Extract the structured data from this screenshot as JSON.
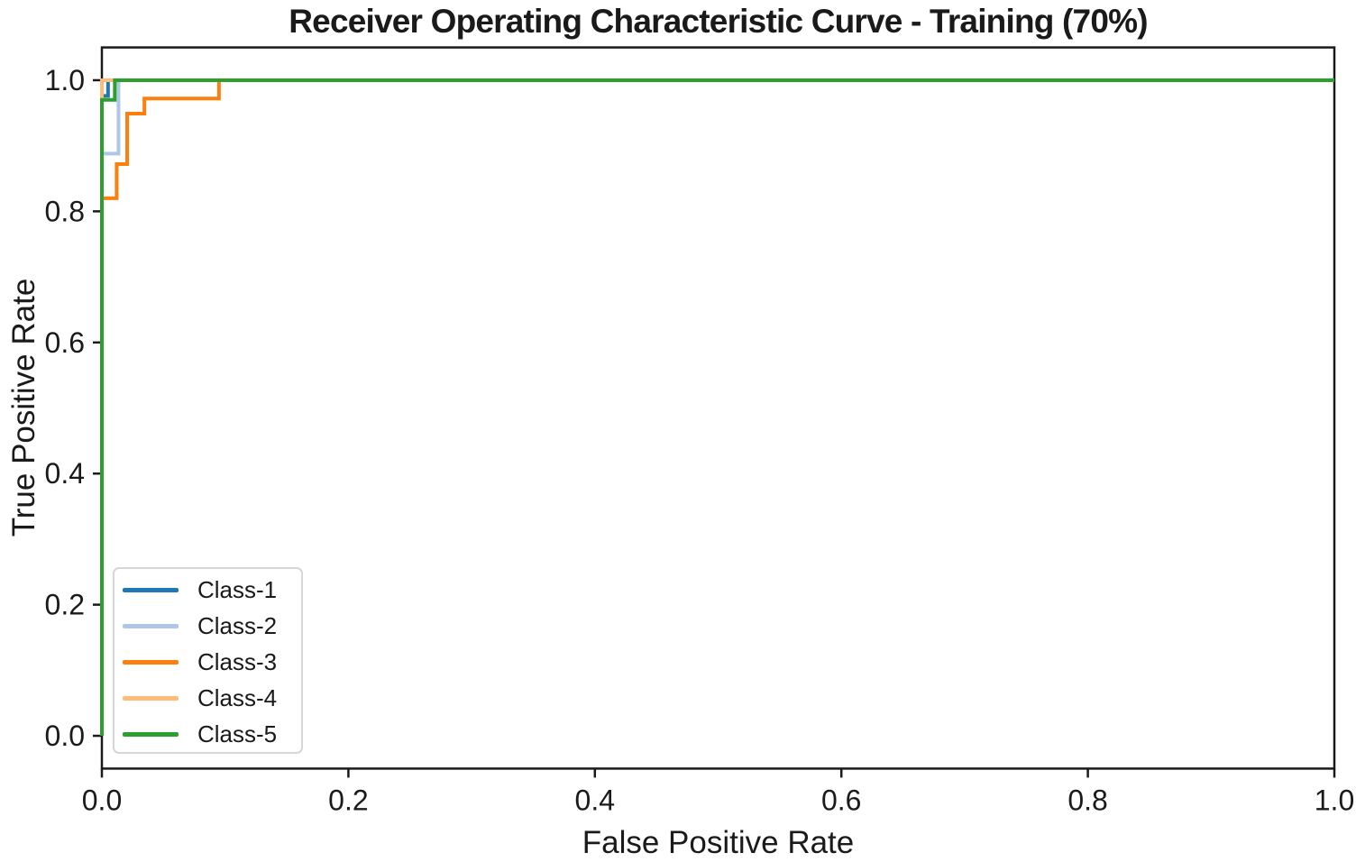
{
  "chart_data": {
    "type": "line",
    "subtype": "roc-step-curves",
    "title": "Receiver Operating Characteristic Curve - Training (70%)",
    "xlabel": "False Positive Rate",
    "ylabel": "True Positive Rate",
    "xlim": [
      0.0,
      1.0
    ],
    "ylim": [
      -0.05,
      1.05
    ],
    "grid": false,
    "x_ticks": {
      "values": [
        0.0,
        0.2,
        0.4,
        0.6,
        0.8,
        1.0
      ],
      "labels": [
        "0.0",
        "0.2",
        "0.4",
        "0.6",
        "0.8",
        "1.0"
      ]
    },
    "y_ticks": {
      "values": [
        0.0,
        0.2,
        0.4,
        0.6,
        0.8,
        1.0
      ],
      "labels": [
        "0.0",
        "0.2",
        "0.4",
        "0.6",
        "0.8",
        "1.0"
      ]
    },
    "legend": {
      "position": "lower-left",
      "entries": [
        "Class-1",
        "Class-2",
        "Class-3",
        "Class-4",
        "Class-5"
      ]
    },
    "series": [
      {
        "name": "Class-1",
        "color": "#1f77b4",
        "points": [
          [
            0,
            0
          ],
          [
            0,
            0.976
          ],
          [
            0.005,
            0.976
          ],
          [
            0.005,
            1.0
          ],
          [
            1.0,
            1.0
          ]
        ]
      },
      {
        "name": "Class-2",
        "color": "#aec7e8",
        "points": [
          [
            0,
            0
          ],
          [
            0,
            0.888
          ],
          [
            0.0135,
            0.888
          ],
          [
            0.0135,
            1.0
          ],
          [
            1.0,
            1.0
          ]
        ]
      },
      {
        "name": "Class-3",
        "color": "#ff7f0e",
        "points": [
          [
            0,
            0
          ],
          [
            0,
            0.82
          ],
          [
            0.012,
            0.82
          ],
          [
            0.012,
            0.872
          ],
          [
            0.0205,
            0.872
          ],
          [
            0.0205,
            0.949
          ],
          [
            0.0345,
            0.949
          ],
          [
            0.0345,
            0.972
          ],
          [
            0.095,
            0.972
          ],
          [
            0.095,
            1.0
          ],
          [
            1.0,
            1.0
          ]
        ]
      },
      {
        "name": "Class-4",
        "color": "#ffbb78",
        "points": [
          [
            0,
            0
          ],
          [
            0,
            1.0
          ],
          [
            1.0,
            1.0
          ]
        ]
      },
      {
        "name": "Class-5",
        "color": "#2ca02c",
        "points": [
          [
            0,
            0
          ],
          [
            0,
            0.97
          ],
          [
            0.0105,
            0.97
          ],
          [
            0.0105,
            1.0
          ],
          [
            1.0,
            1.0
          ]
        ]
      }
    ],
    "style": {
      "axis_color": "#1a1a1a",
      "text_color": "#1a1a1a",
      "line_width": 4,
      "spine_width": 2.5,
      "tick_length": 10,
      "tick_font_size": 32
    }
  }
}
